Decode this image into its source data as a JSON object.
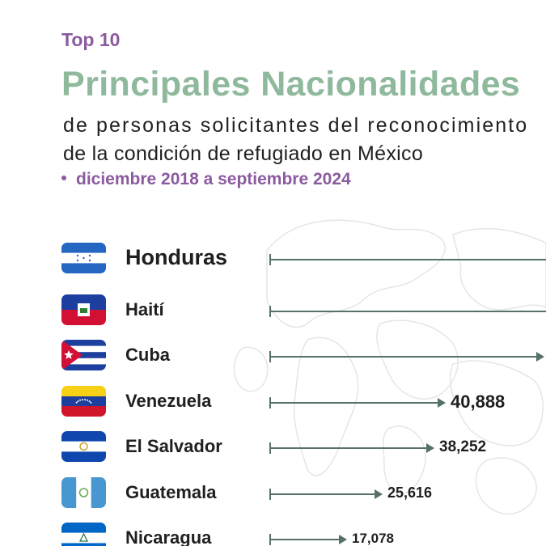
{
  "header": {
    "kicker": "Top 10",
    "title": "Principales Nacionalidades",
    "subtitle_line1": "de personas solicitantes del reconocimiento",
    "subtitle_line2": "de la condición de refugiado en México",
    "period": "diciembre 2018 a septiembre 2024"
  },
  "colors": {
    "kicker": "#8b5a9f",
    "title": "#8fb99c",
    "bar": "#55716a"
  },
  "chart_data": {
    "type": "bar",
    "orientation": "horizontal",
    "categories": [
      "Honduras",
      "Haití",
      "Cuba",
      "Venezuela",
      "El Salvador",
      "Guatemala",
      "Nicaragua"
    ],
    "values": [
      null,
      null,
      null,
      40888,
      38252,
      25616,
      17078
    ],
    "value_labels": [
      "",
      "",
      "",
      "40,888",
      "38,252",
      "25,616",
      "17,078"
    ],
    "flags": [
      "honduras-flag-icon",
      "haiti-flag-icon",
      "cuba-flag-icon",
      "venezuela-flag-icon",
      "el-salvador-flag-icon",
      "guatemala-flag-icon",
      "nicaragua-flag-icon"
    ],
    "xlim": [
      0,
      52000
    ]
  }
}
